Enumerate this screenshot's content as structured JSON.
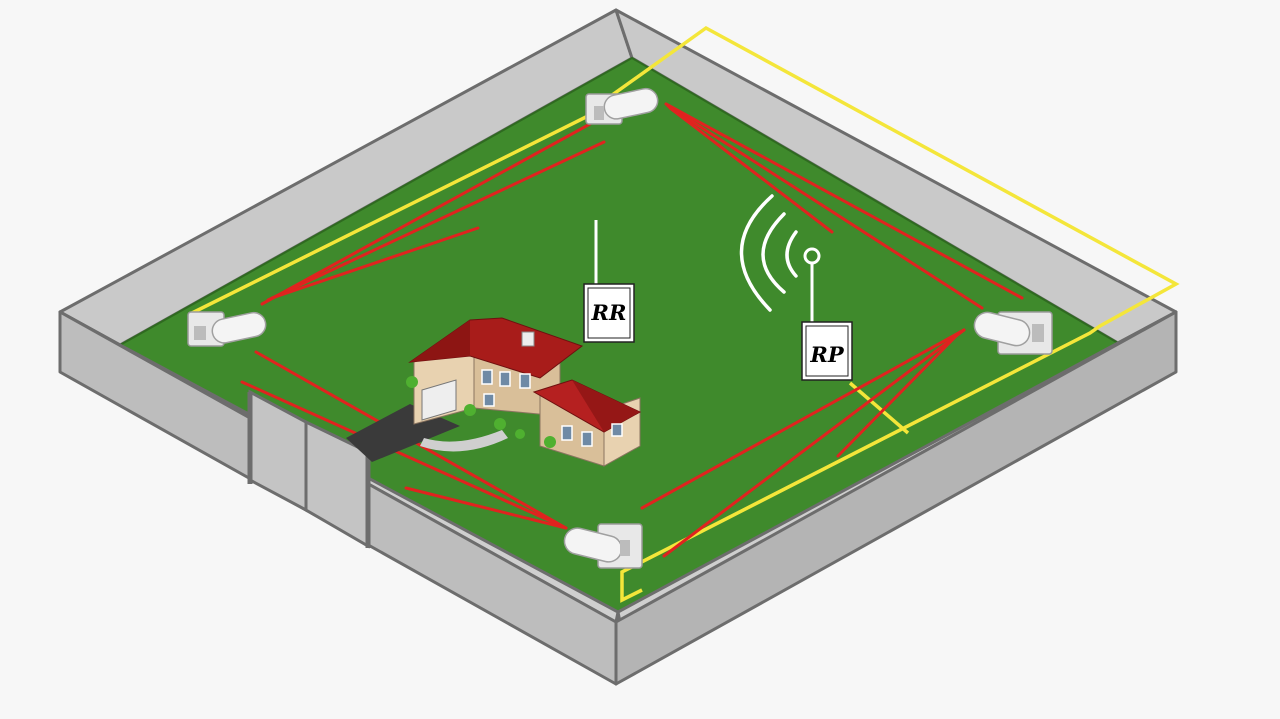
{
  "colors": {
    "background": "#f7f7f7",
    "wall_top": "#c9c9c9",
    "wall_face": "#bdbdbd",
    "wall_edge": "#6d6d6d",
    "lawn": "#3f8a2c",
    "sensor_beam": "#e0231f",
    "perimeter_cable": "#f4e63a",
    "radio_waves": "#ffffff"
  },
  "devices": {
    "receiver": {
      "label": "RR",
      "icon": "receiver-box-icon"
    },
    "panel": {
      "label": "RP",
      "icon": "panel-box-icon"
    }
  },
  "icons": {
    "house": "house-icon",
    "sensor": "barrier-sensor-icon",
    "gate": "gate-icon",
    "waves": "radio-waves-icon"
  }
}
